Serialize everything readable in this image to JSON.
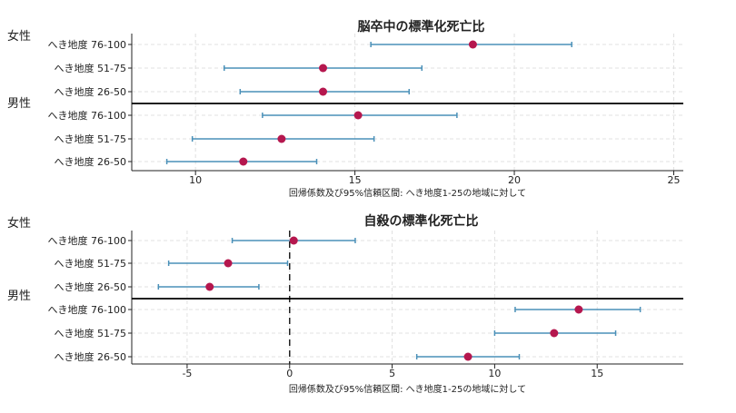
{
  "chart_data": [
    {
      "type": "forest",
      "title": "脳卒中の標準化死亡比",
      "xlabel": "回帰係数及び95%信頼区間: へき地度1-25の地域に対して",
      "xlim": [
        8,
        25.3
      ],
      "xticks": [
        10,
        15,
        20,
        25
      ],
      "reference_line": null,
      "groups": [
        {
          "label": "女性",
          "rows": [
            {
              "label": "へき地度 76-100",
              "estimate": 18.7,
              "lower": 15.5,
              "upper": 21.8
            },
            {
              "label": "へき地度 51-75",
              "estimate": 14.0,
              "lower": 10.9,
              "upper": 17.1
            },
            {
              "label": "へき地度 26-50",
              "estimate": 14.0,
              "lower": 11.4,
              "upper": 16.7
            }
          ]
        },
        {
          "label": "男性",
          "rows": [
            {
              "label": "へき地度 76-100",
              "estimate": 15.1,
              "lower": 12.1,
              "upper": 18.2
            },
            {
              "label": "へき地度 51-75",
              "estimate": 12.7,
              "lower": 9.9,
              "upper": 15.6
            },
            {
              "label": "へき地度 26-50",
              "estimate": 11.5,
              "lower": 9.1,
              "upper": 13.8
            }
          ]
        }
      ]
    },
    {
      "type": "forest",
      "title": "自殺の標準化死亡比",
      "xlabel": "回帰係数及び95%信頼区間: へき地度1-25の地域に対して",
      "xlim": [
        -7.7,
        19.2
      ],
      "xticks": [
        -5,
        0,
        5,
        10,
        15
      ],
      "reference_line": 0,
      "groups": [
        {
          "label": "女性",
          "rows": [
            {
              "label": "へき地度 76-100",
              "estimate": 0.2,
              "lower": -2.8,
              "upper": 3.2
            },
            {
              "label": "へき地度 51-75",
              "estimate": -3.0,
              "lower": -5.9,
              "upper": -0.1
            },
            {
              "label": "へき地度 26-50",
              "estimate": -3.9,
              "lower": -6.4,
              "upper": -1.5
            }
          ]
        },
        {
          "label": "男性",
          "rows": [
            {
              "label": "へき地度 76-100",
              "estimate": 14.1,
              "lower": 11.0,
              "upper": 17.1
            },
            {
              "label": "へき地度 51-75",
              "estimate": 12.9,
              "lower": 10.0,
              "upper": 15.9
            },
            {
              "label": "へき地度 26-50",
              "estimate": 8.7,
              "lower": 6.2,
              "upper": 11.2
            }
          ]
        }
      ]
    }
  ],
  "colors": {
    "ci_line": "#4a90b8",
    "point": "#b5174e",
    "divider": "#000000",
    "grid": "#e0e0e0",
    "axis": "#222222"
  }
}
